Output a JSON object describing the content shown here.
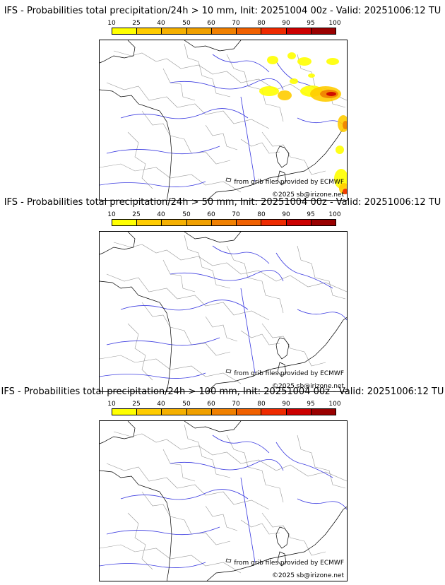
{
  "colorbar": {
    "labels": [
      "10",
      "25",
      "40",
      "50",
      "60",
      "70",
      "80",
      "90",
      "95",
      "100"
    ],
    "colors": [
      "#ffff00",
      "#ffcc00",
      "#f5b000",
      "#f0a000",
      "#f08000",
      "#f06000",
      "#ee2a00",
      "#cc0000",
      "#990000",
      "#660000"
    ]
  },
  "credits": {
    "grib": "from grib files provided by ECMWF",
    "copyright": "©2025 sb@irizone.net"
  },
  "panels": [
    {
      "title": "IFS - Probabilities total precipitation/24h > 10 mm, Init: 20251004 00z - Valid: 20251006:12 TU",
      "threshold_mm": 10,
      "has_precip": true
    },
    {
      "title": "IFS - Probabilities total precipitation/24h > 50 mm, Init: 20251004 00z - Valid: 20251006:12 TU",
      "threshold_mm": 50,
      "has_precip": false
    },
    {
      "title": "IFS - Probabilities total precipitation/24h > 100 mm, Init: 20251004 00z - Valid: 20251006:12 TU",
      "threshold_mm": 100,
      "has_precip": false
    }
  ]
}
